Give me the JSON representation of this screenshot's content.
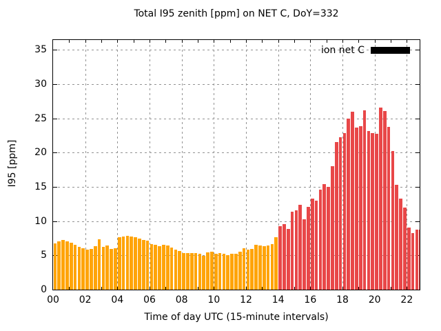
{
  "title": "Total I95 zenith [ppm] on NET C, DoY=332",
  "legend": {
    "label": "ion net C",
    "swatch_color": "#000000"
  },
  "axes": {
    "xlabel": "Time of day UTC (15-minute intervals)",
    "ylabel": "I95 [ppm]",
    "x_tick_labels": [
      "00",
      "02",
      "04",
      "06",
      "08",
      "10",
      "12",
      "14",
      "16",
      "18",
      "20",
      "22"
    ],
    "x_tick_hours": [
      0,
      2,
      4,
      6,
      8,
      10,
      12,
      14,
      16,
      18,
      20,
      22
    ],
    "y_ticks": [
      0,
      5,
      10,
      15,
      20,
      25,
      30,
      35
    ]
  },
  "chart_data": {
    "type": "bar",
    "title": "Total I95 zenith [ppm] on NET C, DoY=332",
    "xlabel": "Time of day UTC (15-minute intervals)",
    "ylabel": "I95 [ppm]",
    "legend_entry": "ion net C",
    "interval_minutes": 15,
    "start_time": "00:00",
    "end_time": "22:45",
    "x_range_hours": [
      0,
      22.8
    ],
    "y_range": [
      0,
      36.45
    ],
    "grid": "dashed gray at every 5 ppm and every 2 hours",
    "color_split_index": 56,
    "color_split_time": "14:00",
    "color_before": "#ffa408",
    "color_after": "#e84748",
    "values": [
      6.7,
      7.0,
      7.3,
      7.0,
      6.8,
      6.5,
      6.2,
      6.0,
      5.8,
      5.9,
      6.3,
      7.4,
      6.2,
      6.4,
      5.9,
      6.0,
      7.7,
      7.8,
      7.9,
      7.8,
      7.7,
      7.5,
      7.3,
      7.2,
      6.6,
      6.5,
      6.3,
      6.5,
      6.4,
      6.1,
      5.8,
      5.6,
      5.3,
      5.3,
      5.3,
      5.3,
      5.2,
      4.9,
      5.4,
      5.5,
      5.2,
      5.3,
      5.2,
      5.0,
      5.2,
      5.2,
      5.5,
      6.0,
      5.8,
      5.9,
      6.5,
      6.4,
      6.3,
      6.4,
      6.6,
      7.7,
      9.3,
      9.6,
      8.9,
      11.4,
      11.6,
      12.4,
      10.3,
      12.1,
      13.3,
      13.0,
      14.6,
      15.4,
      15.0,
      18.0,
      21.5,
      22.3,
      22.9,
      25.0,
      26.0,
      23.7,
      23.9,
      26.2,
      23.2,
      22.9,
      22.8,
      26.6,
      26.1,
      23.8,
      20.2,
      15.3,
      13.3,
      12.0,
      9.1,
      8.3,
      8.8,
      8.8
    ]
  }
}
